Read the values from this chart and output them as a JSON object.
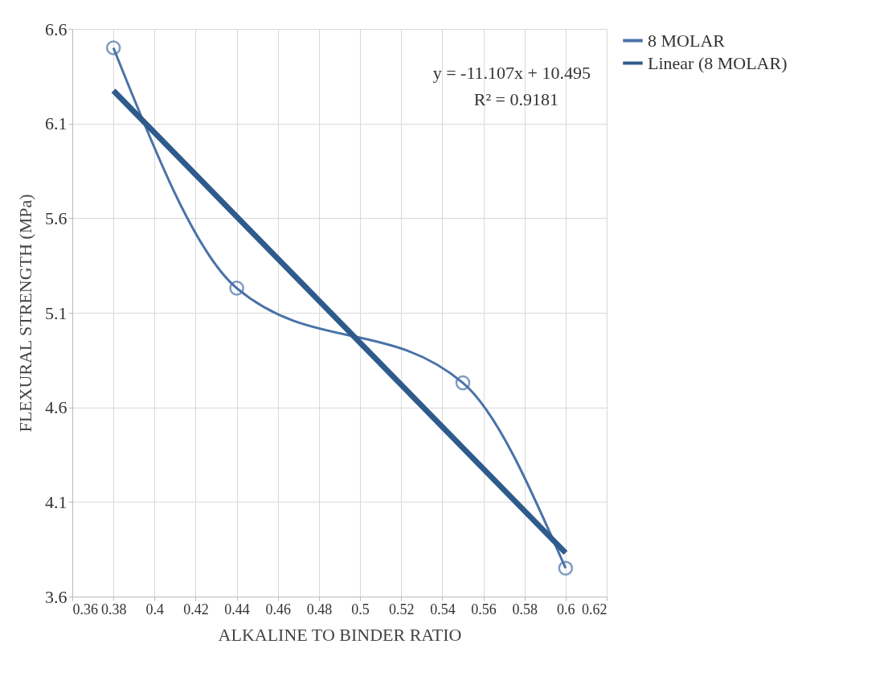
{
  "chart_data": {
    "type": "line",
    "xlabel": "ALKALINE TO BINDER RATIO",
    "ylabel": "FLEXURAL STRENGTH (MPa)",
    "xlim": [
      0.36,
      0.62
    ],
    "xticks": [
      0.36,
      0.38,
      0.4,
      0.42,
      0.44,
      0.46,
      0.48,
      0.5,
      0.52,
      0.54,
      0.56,
      0.58,
      0.6,
      0.62
    ],
    "ylim": [
      3.6,
      6.6
    ],
    "yticks": [
      3.6,
      4.1,
      4.6,
      5.1,
      5.6,
      6.1,
      6.6
    ],
    "grid": true,
    "legend": "right",
    "marker": "circle",
    "line_style": "solid",
    "annotations": [
      "y = -11.107x + 10.495",
      "R² = 0.9181"
    ],
    "series": [
      {
        "name": "8 MOLAR",
        "color": "#4a72a8",
        "x": [
          0.38,
          0.44,
          0.55,
          0.6
        ],
        "values": [
          6.5,
          5.23,
          4.73,
          3.75
        ]
      },
      {
        "name": "Linear (8 MOLAR)",
        "type": "line",
        "color": "#2e5b8c",
        "x": [
          0.38,
          0.6
        ],
        "values": [
          6.274,
          3.831
        ],
        "marker": "none"
      }
    ]
  }
}
